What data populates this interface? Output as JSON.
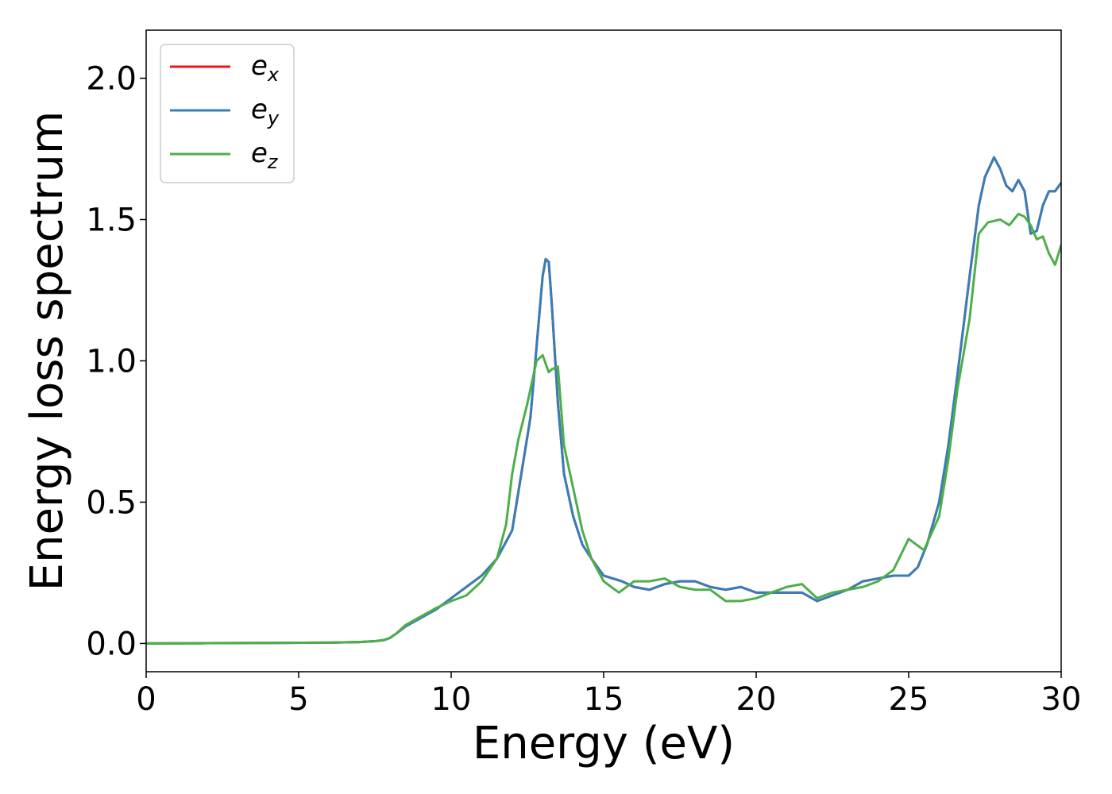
{
  "chart_data": {
    "type": "line",
    "xlabel": "Energy (eV)",
    "ylabel": "Energy loss spectrum",
    "xlim": [
      0,
      30
    ],
    "ylim": [
      -0.1,
      2.17
    ],
    "xticks": [
      0,
      5,
      10,
      15,
      20,
      25,
      30
    ],
    "xtick_labels": [
      "0",
      "5",
      "10",
      "15",
      "20",
      "25",
      "30"
    ],
    "yticks": [
      0.0,
      0.5,
      1.0,
      1.5,
      2.0
    ],
    "ytick_labels": [
      "0.0",
      "0.5",
      "1.0",
      "1.5",
      "2.0"
    ],
    "grid": false,
    "legend_position": "top-left",
    "series": [
      {
        "name": "e",
        "subscript": "x",
        "color": "#e41a1c",
        "x": [
          0,
          2,
          4,
          6,
          7,
          7.5,
          7.8,
          8.0,
          8.2,
          8.5,
          9.0,
          9.5,
          10.0,
          10.5,
          11.0,
          11.5,
          12.0,
          12.3,
          12.6,
          12.8,
          13.0,
          13.1,
          13.2,
          13.3,
          13.5,
          13.7,
          14.0,
          14.3,
          14.6,
          15.0,
          15.3,
          15.6,
          16.0,
          16.5,
          17.0,
          17.5,
          18.0,
          18.5,
          19.0,
          19.5,
          20.0,
          20.5,
          21.0,
          21.5,
          22.0,
          22.5,
          23.0,
          23.5,
          24.0,
          24.5,
          25.0,
          25.3,
          25.6,
          26.0,
          26.3,
          26.6,
          27.0,
          27.3,
          27.5,
          27.8,
          28.0,
          28.2,
          28.4,
          28.6,
          28.8,
          29.0,
          29.2,
          29.4,
          29.6,
          29.8,
          30.0
        ],
        "y": [
          0,
          0.001,
          0.002,
          0.003,
          0.005,
          0.008,
          0.012,
          0.02,
          0.035,
          0.06,
          0.09,
          0.12,
          0.16,
          0.2,
          0.24,
          0.3,
          0.4,
          0.6,
          0.8,
          1.05,
          1.3,
          1.36,
          1.35,
          1.2,
          0.85,
          0.6,
          0.45,
          0.35,
          0.3,
          0.24,
          0.23,
          0.22,
          0.2,
          0.19,
          0.21,
          0.22,
          0.22,
          0.2,
          0.19,
          0.2,
          0.18,
          0.18,
          0.18,
          0.18,
          0.15,
          0.17,
          0.19,
          0.22,
          0.23,
          0.24,
          0.24,
          0.27,
          0.35,
          0.5,
          0.7,
          0.95,
          1.3,
          1.55,
          1.65,
          1.72,
          1.68,
          1.62,
          1.6,
          1.64,
          1.6,
          1.45,
          1.46,
          1.55,
          1.6,
          1.6,
          1.63
        ]
      },
      {
        "name": "e",
        "subscript": "y",
        "color": "#377eb8",
        "x": [
          0,
          2,
          4,
          6,
          7,
          7.5,
          7.8,
          8.0,
          8.2,
          8.5,
          9.0,
          9.5,
          10.0,
          10.5,
          11.0,
          11.5,
          12.0,
          12.3,
          12.6,
          12.8,
          13.0,
          13.1,
          13.2,
          13.3,
          13.5,
          13.7,
          14.0,
          14.3,
          14.6,
          15.0,
          15.3,
          15.6,
          16.0,
          16.5,
          17.0,
          17.5,
          18.0,
          18.5,
          19.0,
          19.5,
          20.0,
          20.5,
          21.0,
          21.5,
          22.0,
          22.5,
          23.0,
          23.5,
          24.0,
          24.5,
          25.0,
          25.3,
          25.6,
          26.0,
          26.3,
          26.6,
          27.0,
          27.3,
          27.5,
          27.8,
          28.0,
          28.2,
          28.4,
          28.6,
          28.8,
          29.0,
          29.2,
          29.4,
          29.6,
          29.8,
          30.0
        ],
        "y": [
          0,
          0.001,
          0.002,
          0.003,
          0.005,
          0.008,
          0.012,
          0.02,
          0.035,
          0.06,
          0.09,
          0.12,
          0.16,
          0.2,
          0.24,
          0.3,
          0.4,
          0.6,
          0.8,
          1.05,
          1.3,
          1.36,
          1.35,
          1.2,
          0.85,
          0.6,
          0.45,
          0.35,
          0.3,
          0.24,
          0.23,
          0.22,
          0.2,
          0.19,
          0.21,
          0.22,
          0.22,
          0.2,
          0.19,
          0.2,
          0.18,
          0.18,
          0.18,
          0.18,
          0.15,
          0.17,
          0.19,
          0.22,
          0.23,
          0.24,
          0.24,
          0.27,
          0.35,
          0.5,
          0.7,
          0.95,
          1.3,
          1.55,
          1.65,
          1.72,
          1.68,
          1.62,
          1.6,
          1.64,
          1.6,
          1.45,
          1.46,
          1.55,
          1.6,
          1.6,
          1.63
        ]
      },
      {
        "name": "e",
        "subscript": "z",
        "color": "#4daf4a",
        "x": [
          0,
          2,
          4,
          6,
          7,
          7.5,
          7.8,
          8.0,
          8.2,
          8.5,
          9.0,
          9.5,
          10.0,
          10.5,
          11.0,
          11.5,
          11.8,
          12.0,
          12.2,
          12.5,
          12.8,
          13.0,
          13.2,
          13.3,
          13.5,
          13.7,
          14.0,
          14.3,
          14.6,
          15.0,
          15.5,
          16.0,
          16.5,
          17.0,
          17.5,
          18.0,
          18.5,
          19.0,
          19.5,
          20.0,
          20.5,
          21.0,
          21.5,
          22.0,
          22.5,
          23.0,
          23.5,
          24.0,
          24.5,
          25.0,
          25.5,
          26.0,
          26.3,
          26.6,
          27.0,
          27.3,
          27.6,
          28.0,
          28.3,
          28.6,
          28.8,
          29.0,
          29.2,
          29.4,
          29.6,
          29.8,
          30.0
        ],
        "y": [
          0,
          0.001,
          0.002,
          0.003,
          0.005,
          0.008,
          0.012,
          0.02,
          0.035,
          0.065,
          0.095,
          0.125,
          0.15,
          0.17,
          0.22,
          0.3,
          0.42,
          0.6,
          0.72,
          0.85,
          1.0,
          1.02,
          0.96,
          0.97,
          0.98,
          0.7,
          0.55,
          0.4,
          0.3,
          0.22,
          0.18,
          0.22,
          0.22,
          0.23,
          0.2,
          0.19,
          0.19,
          0.15,
          0.15,
          0.16,
          0.18,
          0.2,
          0.21,
          0.16,
          0.18,
          0.19,
          0.2,
          0.22,
          0.26,
          0.37,
          0.33,
          0.45,
          0.65,
          0.9,
          1.15,
          1.45,
          1.49,
          1.5,
          1.48,
          1.52,
          1.51,
          1.48,
          1.43,
          1.44,
          1.38,
          1.34,
          1.41
        ]
      }
    ]
  }
}
